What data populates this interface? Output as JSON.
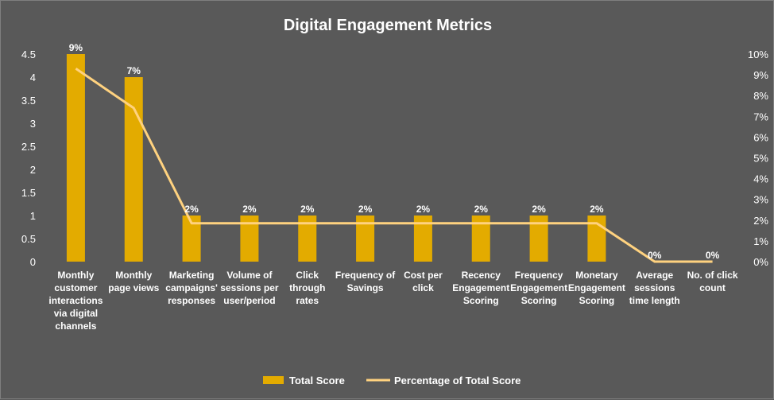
{
  "chart_data": {
    "type": "bar",
    "title": "Digital Engagement  Metrics",
    "categories": [
      "Monthly customer interactions via digital channels",
      "Monthly page views",
      "Marketing campaigns' responses",
      "Volume of sessions per user/period",
      "Click through rates",
      "Frequency of Savings",
      "Cost per click",
      "Recency Engagement Scoring",
      "Frequency Engagement Scoring",
      "Monetary Engagement Scoring",
      "Average sessions time length",
      "No. of click count"
    ],
    "category_lines": [
      [
        "Monthly",
        "customer",
        "interactions",
        "via digital",
        "channels"
      ],
      [
        "Monthly",
        "page views"
      ],
      [
        "Marketing",
        "campaigns'",
        "responses"
      ],
      [
        "Volume of",
        "sessions per",
        "user/period"
      ],
      [
        "Click",
        "through",
        "rates"
      ],
      [
        "Frequency of",
        "Savings"
      ],
      [
        "Cost per",
        "click"
      ],
      [
        "Recency",
        "Engagement",
        "Scoring"
      ],
      [
        "Frequency",
        "Engagement",
        "Scoring"
      ],
      [
        "Monetary",
        "Engagement",
        "Scoring"
      ],
      [
        "Average",
        "sessions",
        "time length"
      ],
      [
        "No. of click",
        "count"
      ]
    ],
    "series": [
      {
        "name": "Total Score",
        "type": "bar",
        "axis": "left",
        "color": "#E3AB00",
        "values": [
          4.5,
          4,
          1,
          1,
          1,
          1,
          1,
          1,
          1,
          1,
          0,
          0
        ],
        "data_labels": [
          "9%",
          "7%",
          "2%",
          "2%",
          "2%",
          "2%",
          "2%",
          "2%",
          "2%",
          "2%",
          "0%",
          "0%"
        ]
      },
      {
        "name": "Percentage of Total Score",
        "type": "line",
        "axis": "right",
        "color": "#FFD27F",
        "values": [
          9.3,
          7.4,
          1.85,
          1.85,
          1.85,
          1.85,
          1.85,
          1.85,
          1.85,
          1.85,
          0,
          0
        ]
      }
    ],
    "y_left": {
      "range": [
        0,
        4.5
      ],
      "ticks": [
        0,
        0.5,
        1,
        1.5,
        2,
        2.5,
        3,
        3.5,
        4,
        4.5
      ],
      "tick_labels": [
        "0",
        "0.5",
        "1",
        "1.5",
        "2",
        "2.5",
        "3",
        "3.5",
        "4",
        "4.5"
      ]
    },
    "y_right": {
      "range": [
        0,
        10
      ],
      "ticks": [
        0,
        1,
        2,
        3,
        4,
        5,
        6,
        7,
        8,
        9,
        10
      ],
      "tick_labels": [
        "0%",
        "1%",
        "2%",
        "3%",
        "4%",
        "5%",
        "6%",
        "7%",
        "8%",
        "9%",
        "10%"
      ]
    },
    "grid": false,
    "legend_position": "bottom",
    "background_color": "#595959",
    "text_color": "#FFFFFF"
  }
}
